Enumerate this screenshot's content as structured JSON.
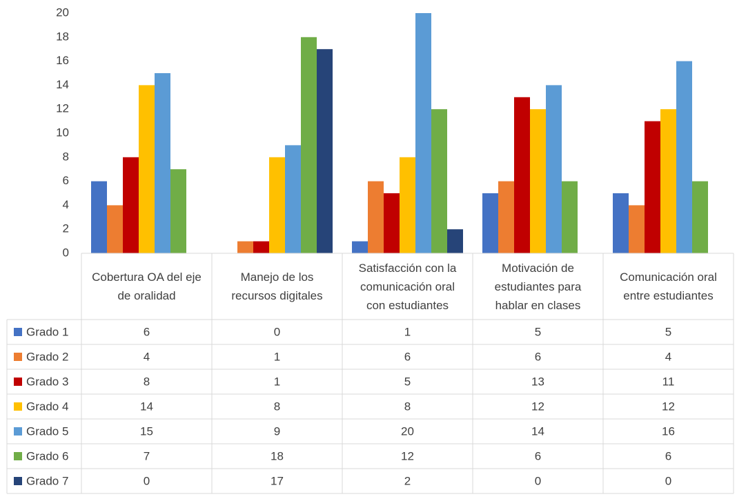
{
  "chart_data": {
    "type": "bar",
    "categories": [
      "Cobertura OA del eje de oralidad",
      "Manejo de los recursos digitales",
      "Satisfacción con la comunicación oral con estudiantes",
      "Motivación de estudiantes para hablar en clases",
      "Comunicación oral entre estudiantes"
    ],
    "series": [
      {
        "name": "Grado 1",
        "color": "#4472c4",
        "values": [
          6,
          0,
          1,
          5,
          5
        ]
      },
      {
        "name": "Grado 2",
        "color": "#ed7d31",
        "values": [
          4,
          1,
          6,
          6,
          4
        ]
      },
      {
        "name": "Grado 3",
        "color": "#c00000",
        "values": [
          8,
          1,
          5,
          13,
          11
        ]
      },
      {
        "name": "Grado 4",
        "color": "#ffc000",
        "values": [
          14,
          8,
          8,
          12,
          12
        ]
      },
      {
        "name": "Grado 5",
        "color": "#5b9bd5",
        "values": [
          15,
          9,
          20,
          14,
          16
        ]
      },
      {
        "name": "Grado 6",
        "color": "#70ad47",
        "values": [
          7,
          18,
          12,
          6,
          6
        ]
      },
      {
        "name": "Grado 7",
        "color": "#264478",
        "values": [
          0,
          17,
          2,
          0,
          0
        ]
      }
    ],
    "ylim": [
      0,
      20
    ],
    "yticks": [
      0,
      2,
      4,
      6,
      8,
      10,
      12,
      14,
      16,
      18,
      20
    ],
    "grid": false
  }
}
